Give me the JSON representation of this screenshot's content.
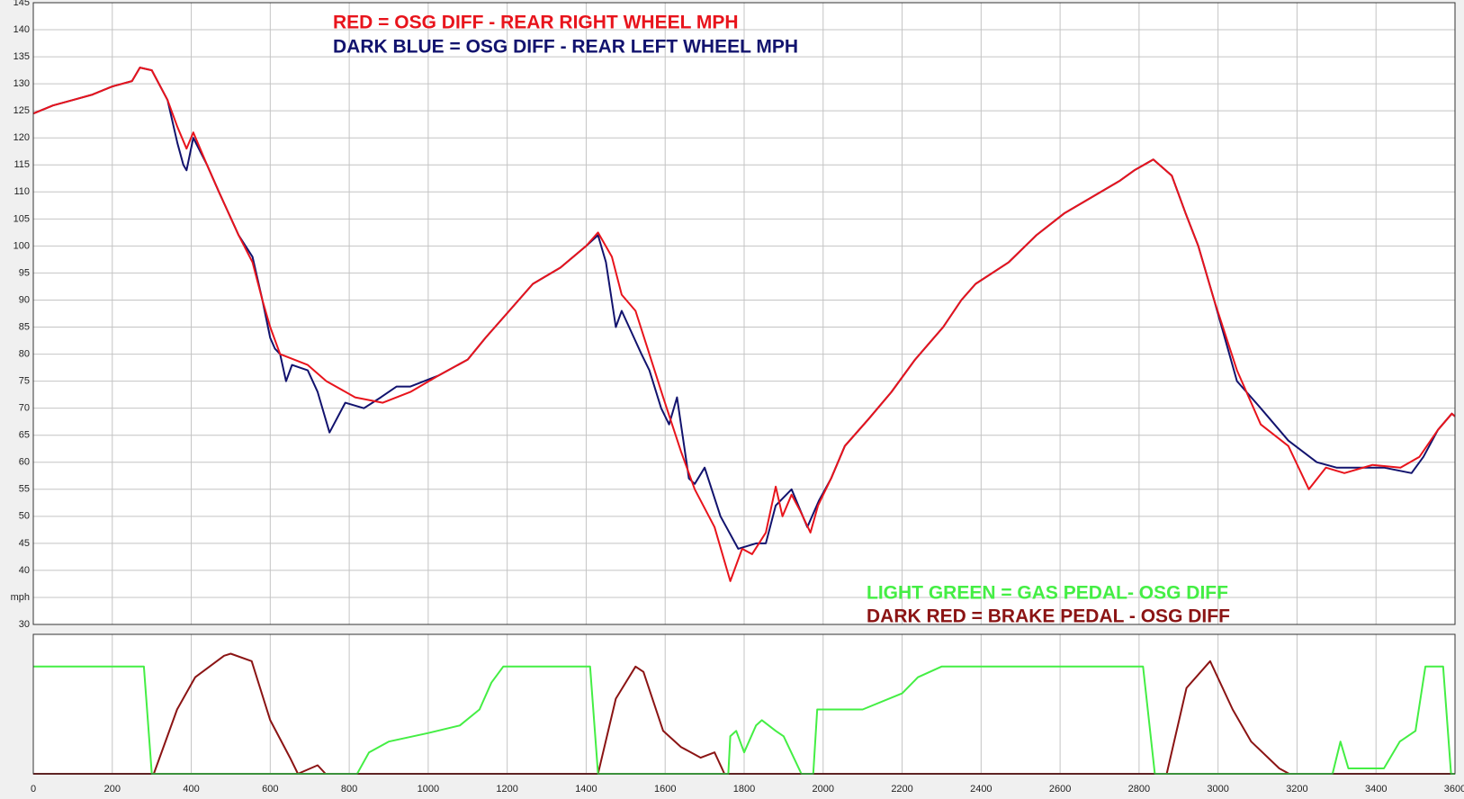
{
  "chart_data": [
    {
      "type": "line",
      "xlim": [
        0,
        3600
      ],
      "ylim": [
        30,
        145
      ],
      "yticks": [
        30,
        {
          "value": 35,
          "label": "mph"
        },
        40,
        45,
        50,
        55,
        60,
        65,
        70,
        75,
        80,
        85,
        90,
        95,
        100,
        105,
        110,
        115,
        120,
        125,
        130,
        135,
        140,
        145
      ],
      "grid": true,
      "legend": "top-center",
      "series": [
        {
          "name": "RED = OSG DIFF - REAR RIGHT WHEEL MPH",
          "color": "#e8141c",
          "x": [
            0,
            50,
            100,
            150,
            200,
            250,
            270,
            300,
            340,
            365,
            388,
            405,
            440,
            470,
            520,
            555,
            580,
            600,
            625,
            695,
            742,
            815,
            885,
            955,
            1025,
            1100,
            1145,
            1205,
            1265,
            1335,
            1400,
            1430,
            1465,
            1490,
            1525,
            1560,
            1595,
            1640,
            1675,
            1725,
            1765,
            1795,
            1820,
            1855,
            1880,
            1897,
            1920,
            1942,
            1968,
            1987,
            2020,
            2055,
            2115,
            2173,
            2233,
            2304,
            2350,
            2386,
            2470,
            2540,
            2610,
            2680,
            2750,
            2788,
            2836,
            2883,
            2918,
            2950,
            2990,
            3048,
            3108,
            3178,
            3230,
            3273,
            3320,
            3391,
            3462,
            3510,
            3557,
            3592,
            3600
          ],
          "values": [
            124.5,
            126,
            127,
            128,
            129.5,
            130.5,
            133,
            132.5,
            127,
            122,
            118,
            121,
            115,
            110,
            102,
            97,
            90,
            85,
            80,
            78,
            75,
            72,
            71,
            73,
            76,
            79,
            83,
            88,
            93,
            96,
            100,
            102.5,
            98,
            91,
            88,
            80,
            72,
            62,
            55,
            48,
            38,
            44,
            43,
            47,
            55.5,
            50,
            54,
            51,
            47,
            52,
            57,
            63,
            68,
            73,
            79,
            85,
            90,
            93,
            97,
            102,
            106,
            109,
            112,
            114,
            116,
            113,
            106,
            100,
            90,
            77,
            67,
            63,
            55,
            59,
            58,
            59.5,
            59,
            61,
            66,
            69,
            68.5
          ]
        },
        {
          "name": "DARK BLUE = OSG DIFF - REAR LEFT WHEEL MPH",
          "color": "#12136e",
          "x": [
            0,
            50,
            100,
            150,
            200,
            250,
            270,
            300,
            340,
            365,
            380,
            388,
            405,
            440,
            470,
            520,
            555,
            580,
            600,
            612,
            625,
            640,
            655,
            695,
            720,
            750,
            790,
            837,
            880,
            920,
            955,
            1025,
            1100,
            1145,
            1205,
            1265,
            1335,
            1400,
            1430,
            1450,
            1475,
            1490,
            1515,
            1540,
            1560,
            1590,
            1610,
            1630,
            1660,
            1675,
            1700,
            1740,
            1785,
            1830,
            1855,
            1880,
            1920,
            1960,
            1990,
            2020,
            2055,
            2115,
            2173,
            2233,
            2304,
            2350,
            2386,
            2470,
            2540,
            2610,
            2680,
            2750,
            2788,
            2836,
            2883,
            2918,
            2950,
            2990,
            3048,
            3108,
            3178,
            3250,
            3300,
            3350,
            3420,
            3490,
            3520,
            3557,
            3592,
            3600
          ],
          "values": [
            124.5,
            126,
            127,
            128,
            129.5,
            130.5,
            133,
            132.5,
            127,
            119,
            115,
            114,
            120,
            115,
            110,
            102,
            98,
            90,
            83,
            81,
            80,
            75,
            78,
            77,
            73,
            65.5,
            71,
            70,
            72,
            74,
            74,
            76,
            79,
            83,
            88,
            93,
            96,
            100,
            102,
            97,
            85,
            88,
            84,
            80,
            77,
            70,
            67,
            72,
            57,
            56,
            59,
            50,
            44,
            45,
            45,
            52,
            55,
            48,
            53,
            57,
            63,
            68,
            73,
            79,
            85,
            90,
            93,
            97,
            102,
            106,
            109,
            112,
            114,
            116,
            113,
            106,
            100,
            90,
            75,
            70,
            64,
            60,
            59,
            59,
            59,
            58,
            61,
            66,
            69,
            68.5
          ]
        }
      ]
    },
    {
      "type": "line",
      "xlim": [
        0,
        3600
      ],
      "ylim": [
        0,
        130
      ],
      "xticks": [
        0,
        200,
        400,
        600,
        800,
        1000,
        1200,
        1400,
        1600,
        1800,
        2000,
        2200,
        2400,
        2600,
        2800,
        3000,
        3200,
        3400,
        3600
      ],
      "grid": true,
      "legend": "bottom-right",
      "series": [
        {
          "name": "LIGHT GREEN = GAS PEDAL- OSG DIFF",
          "color": "#44ee44",
          "x": [
            0,
            280,
            300,
            820,
            850,
            900,
            1000,
            1080,
            1130,
            1160,
            1190,
            1410,
            1430,
            1760,
            1765,
            1780,
            1800,
            1830,
            1845,
            1880,
            1900,
            1945,
            1975,
            1985,
            2100,
            2200,
            2240,
            2300,
            2810,
            2840,
            3290,
            3310,
            3330,
            3420,
            3460,
            3500,
            3525,
            3570,
            3590,
            3600
          ],
          "values": [
            100,
            100,
            0,
            0,
            20,
            30,
            38,
            45,
            60,
            85,
            100,
            100,
            0,
            0,
            35,
            40,
            20,
            45,
            50,
            40,
            35,
            0,
            0,
            60,
            60,
            75,
            90,
            100,
            100,
            0,
            0,
            30,
            5,
            5,
            30,
            40,
            100,
            100,
            0,
            0
          ]
        },
        {
          "name": "DARK RED = BRAKE PEDAL - OSG DIFF",
          "color": "#8b1414",
          "x": [
            0,
            305,
            364,
            410,
            483,
            500,
            553,
            600,
            650,
            670,
            720,
            740,
            1430,
            1475,
            1525,
            1545,
            1595,
            1640,
            1690,
            1725,
            1750,
            2870,
            2920,
            2980,
            3037,
            3084,
            3155,
            3180,
            3600
          ],
          "values": [
            0,
            0,
            60,
            90,
            110,
            112,
            105,
            50,
            15,
            0,
            8,
            0,
            0,
            70,
            100,
            95,
            40,
            25,
            15,
            20,
            0,
            0,
            80,
            105,
            60,
            30,
            5,
            0,
            0
          ]
        }
      ]
    }
  ]
}
